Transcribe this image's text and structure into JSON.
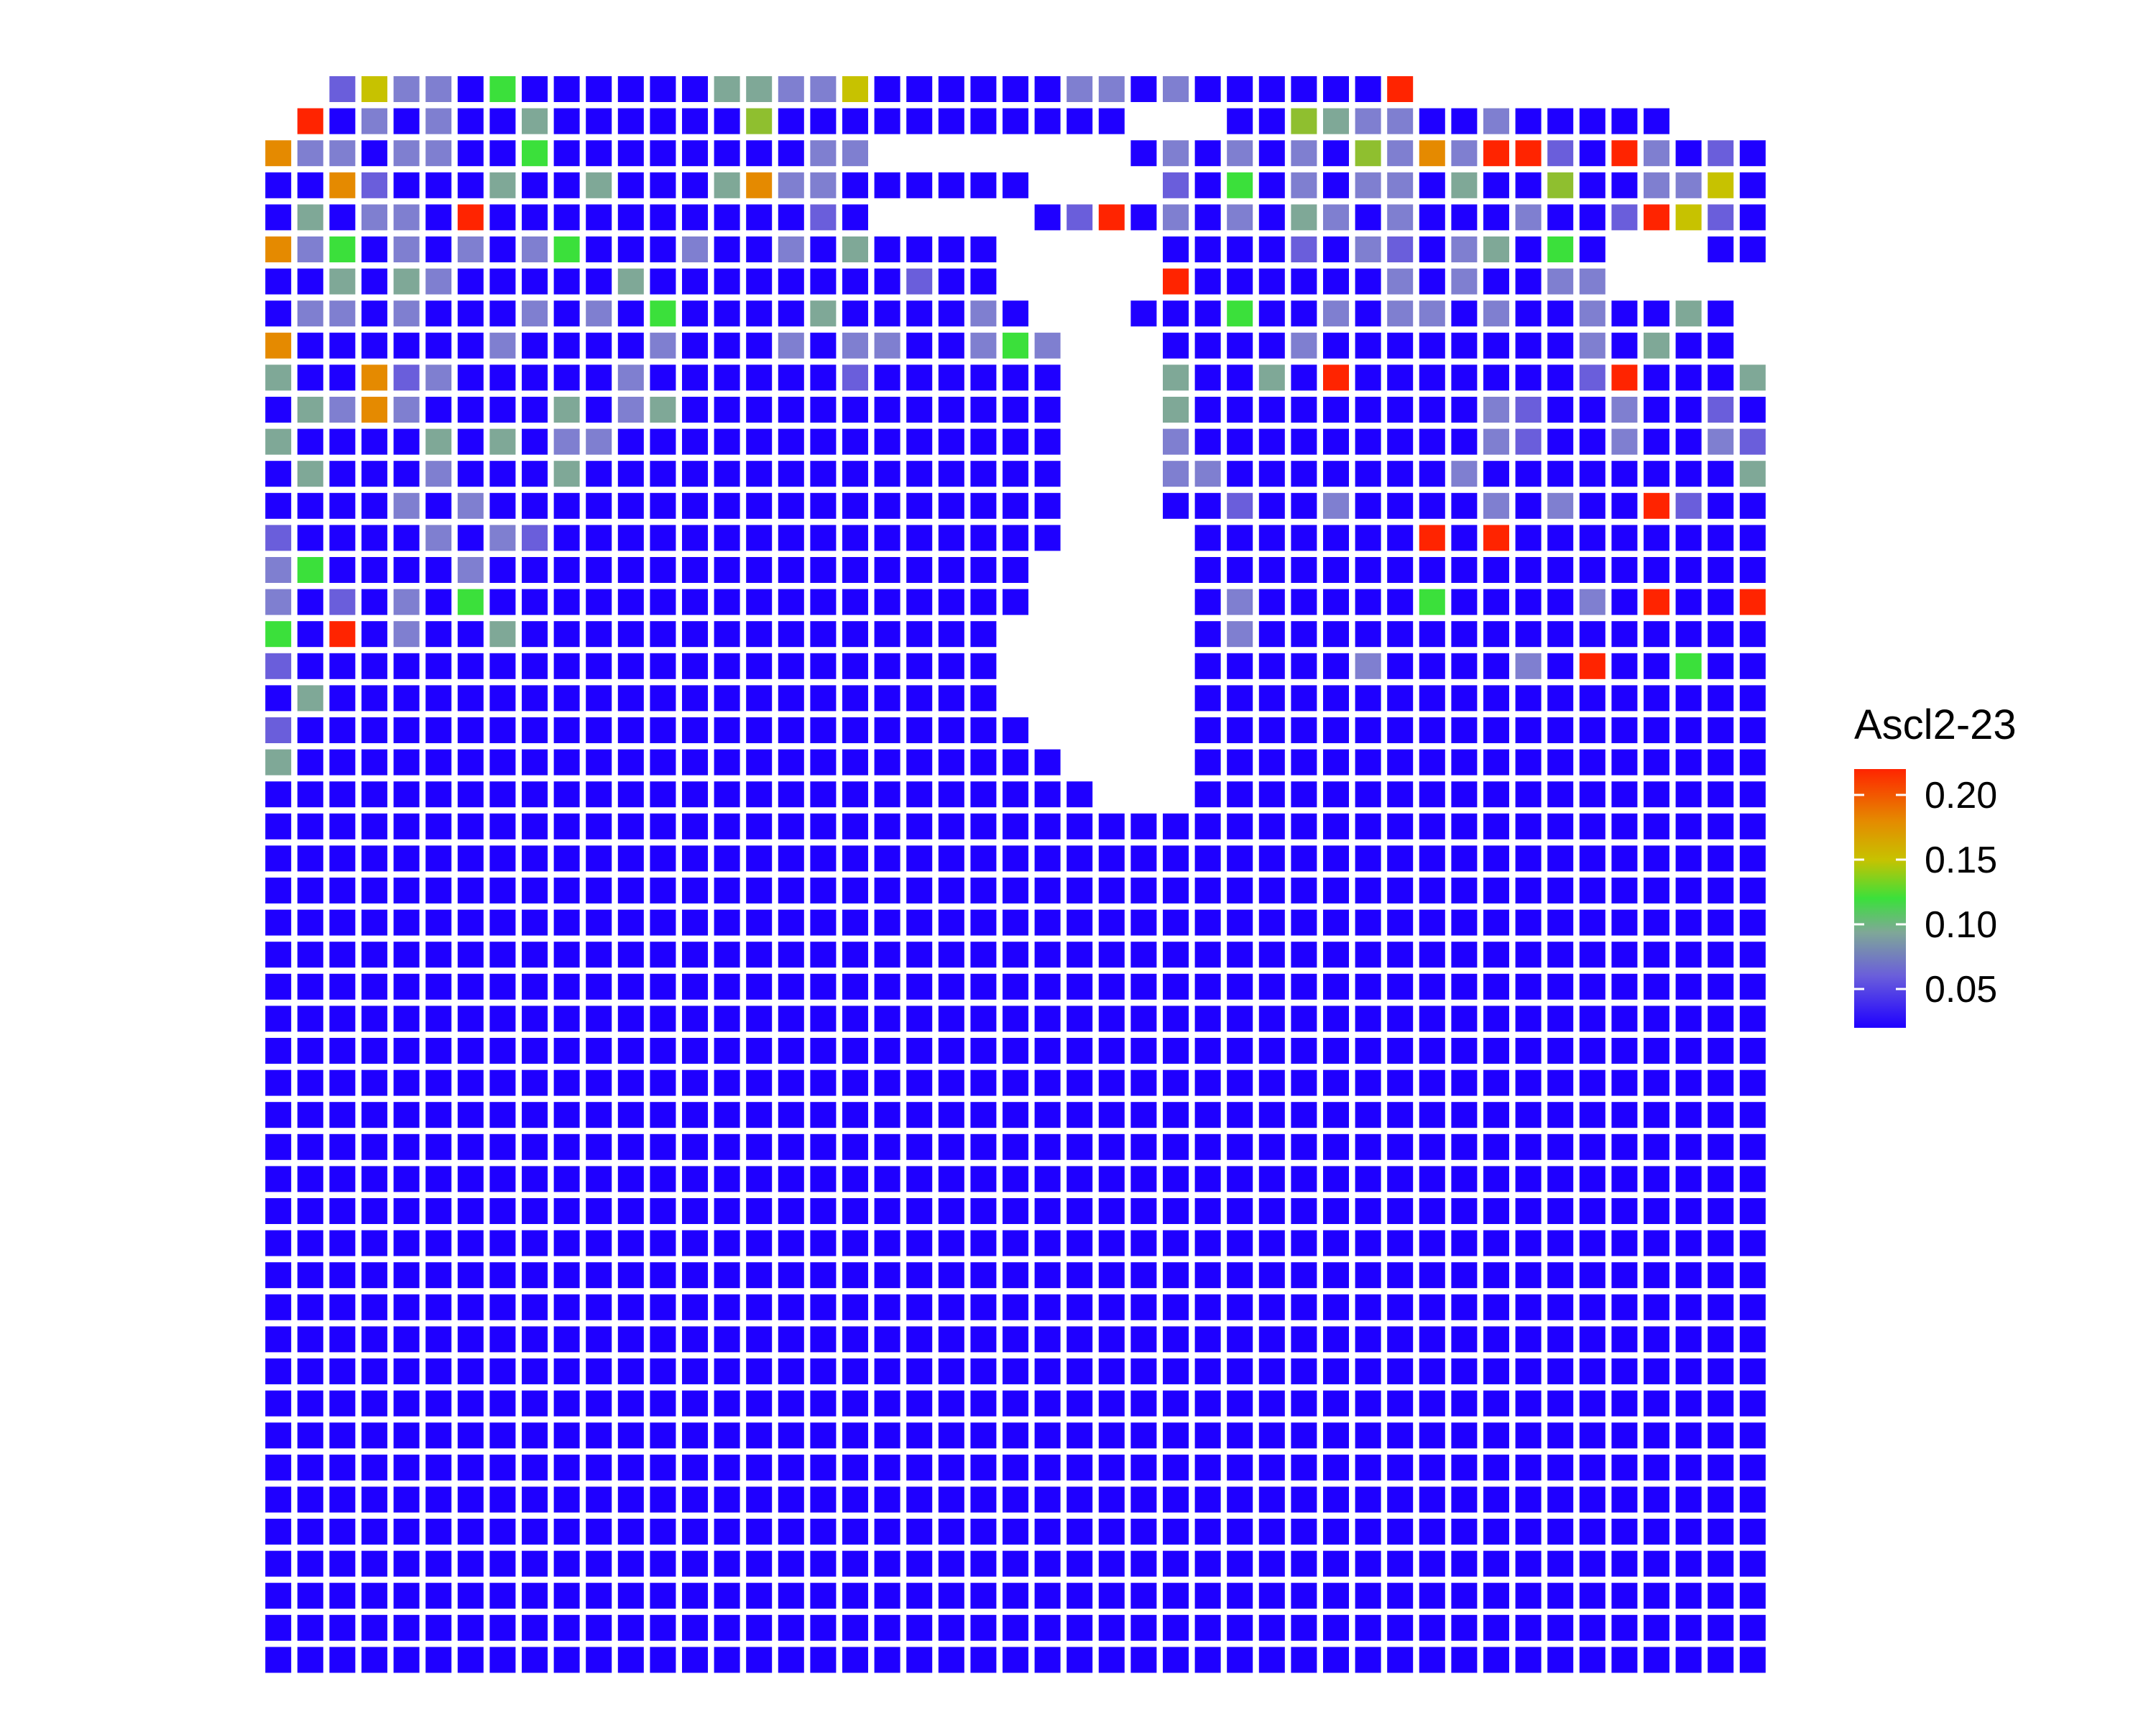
{
  "chart_data": {
    "type": "heatmap",
    "title": "",
    "xlabel": "",
    "ylabel": "",
    "grid": false,
    "legend": {
      "title": "Ascl2-23",
      "placement": "right",
      "ticks": [
        "0.05",
        "0.10",
        "0.15",
        "0.20"
      ],
      "tick_values": [
        0.05,
        0.1,
        0.15,
        0.2
      ],
      "range": [
        0.02,
        0.22
      ]
    },
    "color_scale": {
      "colors": [
        "#1f00ff",
        "#6a5edb",
        "#7fa897",
        "#3be03b",
        "#c7c200",
        "#e58a00",
        "#ff2400"
      ],
      "stops": [
        0.0,
        0.2,
        0.37,
        0.5,
        0.65,
        0.8,
        1.0
      ]
    },
    "grid_size": {
      "cols": 50,
      "rows": 50
    },
    "rows": [
      "....6a99b3bbbbbb7799abbbbbb99b9bbbbbbf...........",
      "...fb9b9bb7bbbbbb8bbbbbbbbbbb...bb8799bb9bbbbb...",
      "..e99b99bb3bbbbbbbb99........b9b9b9b89e9ff6bf9b6b",
      "..b4e6bbb7bb7bbb7e99bbbbbb....6b3b9b99b7bb8bb99ab",
      "..b7b99bfbbbbbbbbbb6b.....b6f59b9b79b9bbb9bb6fa6b",
      "..e93b9b9b93bbb9bb9b7bbbb.....bbbb6b96b97b3b...bb",
      "..bb7b79bbbbb7bbbbbbbb6bb.....fbbbbbb9b9bb99.....",
      "..b99b9bbb9b9b3bbbb7bbbb9b...bbb3bb9b99b9bb9bb7b.",
      "..ebbbbbb9bbbb9bbb9b99bb939...bbbb9bbbbbbbb9b7bb.",
      "..7bbe69bbbbb9bbbbbb6bbbbbb...7bb7bfbbbbbbb6fbbb7",
      "..b79e9bbbb7b97bbbbbbbbbbbb...7bbbbbbbbb96bb9bb6b",
      "..7bbbb7b7b99bbbbbbbbbbbbbb...9bbbbbbbbb96bb9bb96",
      "..b7bbb9bbb7bbbbbbbbbbbbbbb...99bbbbbbb9bbbbbbbb7",
      "..bbbb9b9bbbbbbbbbbbbbbbbbb...bb6bb9bbbb9b9bbf6bb",
      "..6bbbb9b96bbbbbbbbbbbbbbbb....bbbbbbbfbfbbbbbbbb",
      "..93bbbb9bbbbbbbbbbbbbbbbb.....bbbbbbbbbbbbbbbbbb",
      "..9b6b9b3bbbbbbbbbbbbbbbbb.....b9bbbbb3bbbb9bfbbf",
      "..3bfb9bb7bbbbbbbbbbbbbbb......b9bbbbbbbbbbbbbbbb",
      "..6bbbbbbbbbbbbbbbbbbbbbb......bbbbb9bbbb9bfbb3bb",
      "..b7bbbbbbbbbbbbbbbbbbbbb......bbbbbbbbbbbbbbbbbb",
      "..6bbbbbbbbbbbbbbbbbbbbbbb.....bbbbbbbbbbbbbbbbbb",
      "..7bbbbbbbbbbbbbbbbbbbbbbbb....bbbbbbbbbbbbbbbbbb",
      "..bbbbbbbbbbbbbbbbbbbbbbbbbb...bbbbbbbbbbbbbbbbbb",
      "..bbbbbbbbbbbbbbbbbbbbbbbbbbbbbbbbbbbbbbbbbbbbbbb",
      "..bbbbbbbbbbbbbbbbbbbbbbbbbbbbbbbbbbbbbbbbbbbbbbb",
      "..bbbbbbbbbbbbbbbbbbbbbbbbbbbbbbbbbbbbbbbbbbbbbbb",
      "..bbbbbbbbbbbbbbbbbbbbbbbbbbbbbbbbbbbbbbbbbbbbbbb",
      "..bbbbbbbbbbbbbbbbbbbbbbbbbbbbbbbbbbbbbbbbbbbbbbb",
      "..bbbbbbbbbbbbbbbbbbbbbbbbbbbbbbbbbbbbbbbbbbbbbbb",
      "..bbbbbbbbbbbbbbbbbbbbbbbbbbbbbbbbbbbbbbbbbbbbbbb",
      "..bbbbbbbbbbbbbbbbbbbbbbbbbbbbbbbbbbbbbbbbbbbbbbb",
      "..bbbbbbbbbbbbbbbbbbbbbbbbbbbbbbbbbbbbbbbbbbbbbbb",
      "..bbbbbbbbbbbbbbbbbbbbbbbbbbbbbbbbbbbbbbbbbbbbbbb",
      "..bbbbbbbbbbbbbbbbbbbbbbbbbbbbbbbbbbbbbbbbbbbbbbb",
      "..bbbbbbbbbbbbbbbbbbbbbbbbbbbbbbbbbbbbbbbbbbbbbbb",
      "..bbbbbbbbbbbbbbbbbbbbbbbbbbbbbbbbbbbbbbbbbbbbbbb",
      "..bbbbbbbbbbbbbbbbbbbbbbbbbbbbbbbbbbbbbbbbbbbbbbb",
      "..bbbbbbbbbbbbbbbbbbbbbbbbbbbbbbbbbbbbbbbbbbbbbbb",
      "..bbbbbbbbbbbbbbbbbbbbbbbbbbbbbbbbbbbbbbbbbbbbbbb",
      "..bbbbbbbbbbbbbbbbbbbbbbbbbbbbbbbbbbbbbbbbbbbbbbb",
      "..bbbbbbbbbbbbbbbbbbbbbbbbbbbbbbbbbbbbbbbbbbbbbbb",
      "..bbbbbbbbbbbbbbbbbbbbbbbbbbbbbbbbbbbbbbbbbbbbbbb",
      "..bbbbbbbbbbbbbbbbbbbbbbbbbbbbbbbbbbbbbbbbbbbbbbb",
      "..bbbbbbbbbbbbbbbbbbbbbbbbbbbbbbbbbbbbbbbbbbbbbbb",
      "..bbbbbbbbbbbbbbbbbbbbbbbbbbbbbbbbbbbbbbbbbbbbbbb",
      "..bbbbbbbbbbbbbbbbbbbbbbbbbbbbbbbbbbbbbbbbbbbbbbb",
      "..bbbbbbbbbbbbbbbbbbbbbbbbbbbbbbbbbbbbbbbbbbbbbbb",
      "..bbbbbbbbbbbbbbbbbbbbbbbbbbbbbbbbbbbbbbbbbbbbbbb",
      "..bbbbbbbbbbbbbbbbbbbbbbbbbbbbbbbbbbbbbbbbbbbbbbb",
      "..bbbbbbbbbbbbbbbbbbbbbbbbbbbbbbbbbbbbbbbbbbbbbbb"
    ]
  }
}
